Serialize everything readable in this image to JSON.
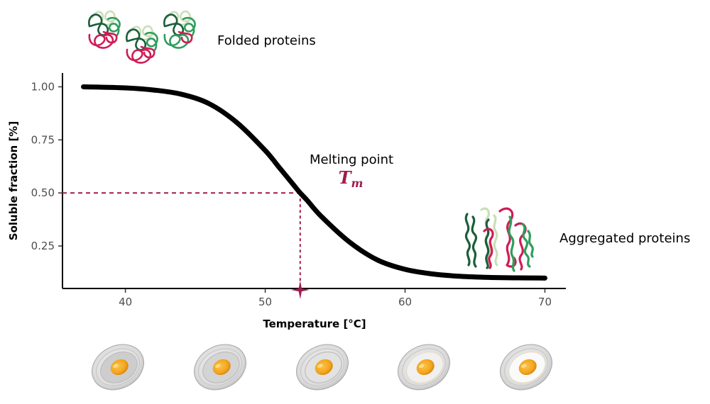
{
  "chart_data": {
    "type": "line",
    "xlabel": "Temperature [°C]",
    "ylabel": "Soluble fraction [%]",
    "xlim": [
      35.5,
      71.5
    ],
    "ylim": [
      0.05,
      1.065
    ],
    "x_ticks": [
      "40",
      "50",
      "60",
      "70"
    ],
    "x_tick_values": [
      40,
      50,
      60,
      70
    ],
    "y_ticks": [
      "0.25",
      "0.50",
      "0.75",
      "1.00"
    ],
    "y_tick_values": [
      0.25,
      0.5,
      0.75,
      1.0
    ],
    "grid": false,
    "series": [
      {
        "x": [
          37,
          40,
          42,
          44,
          46,
          48,
          50,
          51,
          52,
          52.5,
          53,
          54,
          56,
          58,
          60,
          62,
          64,
          66,
          68,
          70
        ],
        "y": [
          1.0,
          0.995,
          0.985,
          0.965,
          0.92,
          0.83,
          0.7,
          0.62,
          0.54,
          0.5,
          0.465,
          0.39,
          0.27,
          0.185,
          0.14,
          0.118,
          0.107,
          0.102,
          0.1,
          0.099
        ],
        "color": "#000000"
      }
    ],
    "melting_point": {
      "x": 52.5,
      "y": 0.5,
      "color": "#9e1c4e"
    },
    "annotations": {
      "melting_label": "Melting point",
      "tm_symbol": "T",
      "tm_subscript": "m",
      "folded_label": "Folded proteins",
      "aggregated_label": "Aggregated proteins"
    }
  },
  "colors": {
    "accent": "#9e1c4e",
    "protein_dark_green": "#1b5e3a",
    "protein_green": "#2e9e5b",
    "protein_light_green": "#c9dfb6",
    "protein_red": "#d01c56"
  },
  "icons": {
    "folded": "folded-protein-icon",
    "aggregated": "aggregated-protein-icon",
    "egg": "fried-egg-icon"
  },
  "egg_doneness": [
    0,
    0.15,
    0.45,
    0.75,
    0.95
  ]
}
